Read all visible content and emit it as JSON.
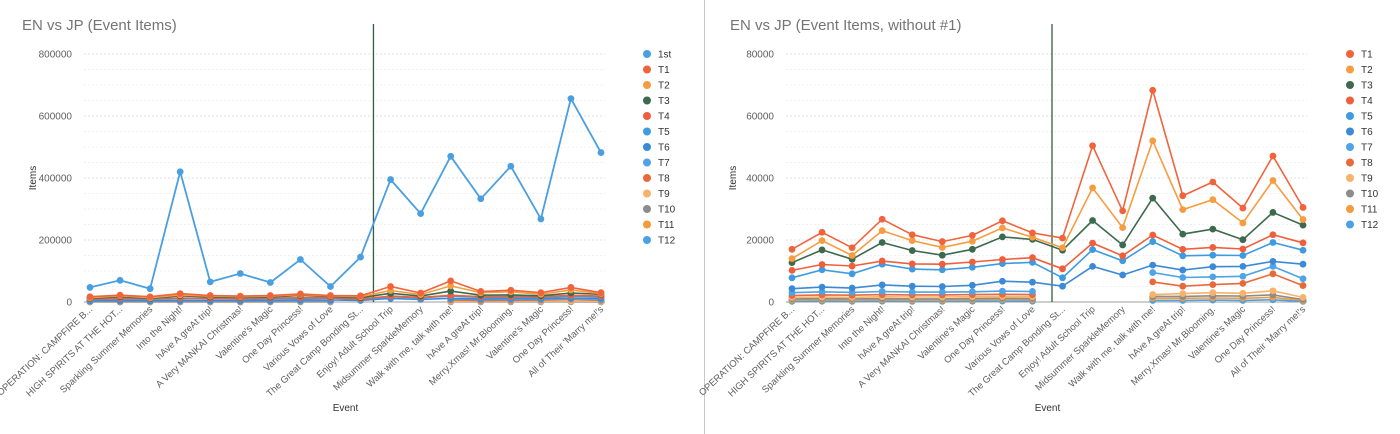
{
  "colors": {
    "1st": "#4a9fe0",
    "T1": "#f0643c",
    "T2": "#f59d40",
    "T3": "#3d6a4f",
    "T4": "#ef5f3b",
    "T5": "#3f9be0",
    "T6": "#3c8ad6",
    "T7": "#4fa3e6",
    "T8": "#e86a3c",
    "T9": "#f7b36b",
    "T10": "#8c8c8c",
    "T11": "#f39a3c",
    "T12": "#4aa2e4",
    "T12gray": "#b9b9b9",
    "marker_line": "#2f5f3e",
    "grid": "#e2e2e2",
    "axis_text": "#5f5f5f"
  },
  "chart_data": [
    {
      "type": "line",
      "title": "EN vs JP (Event Items)",
      "xlabel": "Event",
      "ylabel": "Items",
      "ylim": [
        0,
        800000
      ],
      "yticks": [
        "0",
        "200000",
        "400000",
        "600000",
        "800000"
      ],
      "grid": true,
      "legend_position": "right",
      "categories": [
        "OPERATION: CAMPFIRE B...",
        "HIGH SPIRITS AT THE HOT...",
        "Sparkling Summer Memories",
        "Into the Night!",
        "hAve A greAt trip!",
        "A Very MANKAI Christmas!",
        "Valentine's Magic",
        "One Day Princess!",
        "Various Vows of Love",
        "The Great Camp Bonding St...",
        "Enjoy! Adult School Trip",
        "Midsummer SparkleMemory",
        "Walk with me, talk with me!",
        "hAve A greAt trip!",
        "Merry.Xmas! Mr.Blooming.",
        "Valentine's Magic",
        "One Day Princess!",
        "All of Their 'Marry me!'s"
      ],
      "series": [
        {
          "name": "1st",
          "values": [
            47000,
            70000,
            43000,
            420000,
            65000,
            92000,
            63000,
            137000,
            50000,
            145000,
            395000,
            285000,
            470000,
            333000,
            438000,
            268000,
            656000,
            482000
          ]
        },
        {
          "name": "T1",
          "values": [
            17000,
            22000,
            17000,
            27000,
            21000,
            19000,
            21000,
            26000,
            21000,
            20000,
            50000,
            29000,
            68000,
            34000,
            38000,
            30000,
            47000,
            30000
          ]
        },
        {
          "name": "T2",
          "values": [
            14000,
            20000,
            14000,
            23000,
            19000,
            17000,
            19000,
            24000,
            20000,
            17000,
            37000,
            24000,
            52000,
            30000,
            33000,
            25000,
            39000,
            27000
          ]
        },
        {
          "name": "T3",
          "values": [
            12000,
            17000,
            12000,
            20000,
            16000,
            15000,
            16000,
            21000,
            18000,
            14000,
            28000,
            19000,
            35000,
            22000,
            23000,
            20000,
            29000,
            25000
          ]
        },
        {
          "name": "T4",
          "values": [
            10000,
            12000,
            11000,
            13000,
            12000,
            12000,
            13000,
            13500,
            14000,
            10000,
            19000,
            15000,
            21500,
            17000,
            17500,
            17000,
            21500,
            19000
          ]
        },
        {
          "name": "T5",
          "values": [
            8000,
            10000,
            9000,
            12000,
            11000,
            10500,
            11000,
            12000,
            12500,
            8000,
            17000,
            13500,
            19500,
            15000,
            15000,
            15000,
            19000,
            17000
          ]
        },
        {
          "name": "T6",
          "values": [
            4500,
            5000,
            4500,
            5500,
            5000,
            5000,
            5500,
            7000,
            6500,
            5000,
            11500,
            8500,
            12000,
            10000,
            11000,
            11000,
            13000,
            12000
          ]
        },
        {
          "name": "T7",
          "values": [
            3000,
            3200,
            3100,
            3300,
            3200,
            3200,
            3300,
            3500,
            3400,
            null,
            null,
            null,
            9500,
            8000,
            8000,
            8000,
            11500,
            7500
          ]
        },
        {
          "name": "T8",
          "values": [
            2200,
            2300,
            2200,
            2400,
            2300,
            2300,
            2400,
            2500,
            2400,
            null,
            null,
            null,
            6500,
            5000,
            5500,
            6000,
            9000,
            5500
          ]
        },
        {
          "name": "T9",
          "values": [
            1500,
            1600,
            1500,
            1700,
            1600,
            1600,
            1700,
            1800,
            1700,
            null,
            null,
            null,
            2500,
            2800,
            3000,
            2800,
            3500,
            1500
          ]
        },
        {
          "name": "T10",
          "values": [
            1000,
            1100,
            1000,
            1100,
            1000,
            1000,
            1100,
            1200,
            1100,
            null,
            null,
            null,
            1800,
            1800,
            2000,
            1900,
            2200,
            800
          ]
        },
        {
          "name": "T11",
          "values": [
            600,
            700,
            600,
            700,
            600,
            600,
            700,
            800,
            700,
            null,
            null,
            null,
            1200,
            1200,
            1300,
            1200,
            1500,
            500
          ]
        },
        {
          "name": "T12",
          "values": [
            200,
            250,
            200,
            250,
            200,
            200,
            250,
            300,
            250,
            null,
            null,
            null,
            500,
            500,
            600,
            500,
            700,
            200
          ]
        }
      ]
    },
    {
      "type": "line",
      "title": "EN vs JP (Event Items, without #1)",
      "xlabel": "Event",
      "ylabel": "Items",
      "ylim": [
        0,
        80000
      ],
      "yticks": [
        "0",
        "20000",
        "40000",
        "60000",
        "80000"
      ],
      "grid": true,
      "legend_position": "right",
      "categories": [
        "OPERATION: CAMPFIRE B...",
        "HIGH SPIRITS AT THE HOT...",
        "Sparkling Summer Memories",
        "Into the Night!",
        "hAve A greAt trip!",
        "A Very MANKAI Christmas!",
        "Valentine's Magic",
        "One Day Princess!",
        "Various Vows of Love",
        "The Great Camp Bonding St...",
        "Enjoy! Adult School Trip",
        "Midsummer SparkleMemory",
        "Walk with me, talk with me!",
        "hAve A greAt trip!",
        "Merry.Xmas! Mr.Blooming.",
        "Valentine's Magic",
        "One Day Princess!",
        "All of Their 'Marry me!'s"
      ],
      "series": [
        {
          "name": "T1",
          "values": [
            17000,
            22500,
            17500,
            26700,
            21700,
            19500,
            21500,
            26200,
            22300,
            20600,
            50400,
            29400,
            68300,
            34300,
            38700,
            30300,
            47100,
            30500
          ]
        },
        {
          "name": "T2",
          "values": [
            14000,
            19800,
            15000,
            23000,
            19800,
            17600,
            19600,
            23900,
            20900,
            17500,
            36800,
            24000,
            52000,
            29800,
            33000,
            25500,
            39200,
            26600
          ]
        },
        {
          "name": "T3",
          "values": [
            12700,
            16800,
            13800,
            19200,
            16600,
            15100,
            17000,
            21000,
            20200,
            16700,
            26300,
            18400,
            33500,
            21900,
            23500,
            20100,
            28900,
            24800
          ]
        },
        {
          "name": "T4",
          "values": [
            10200,
            12100,
            11600,
            13200,
            12300,
            12200,
            12900,
            13700,
            14300,
            10700,
            19000,
            14900,
            21600,
            17000,
            17600,
            17100,
            21700,
            19100
          ]
        },
        {
          "name": "T5",
          "values": [
            7800,
            10400,
            9100,
            12200,
            10600,
            10400,
            11200,
            12400,
            12800,
            7800,
            16900,
            13300,
            19500,
            14900,
            15100,
            15000,
            19200,
            16700
          ]
        },
        {
          "name": "T6",
          "values": [
            4300,
            4800,
            4500,
            5500,
            5100,
            5000,
            5400,
            6700,
            6400,
            5100,
            11500,
            8700,
            11900,
            10300,
            11400,
            11500,
            13100,
            12200
          ]
        },
        {
          "name": "T7",
          "values": [
            3000,
            3300,
            3100,
            3400,
            3200,
            3200,
            3300,
            3500,
            3400,
            null,
            null,
            null,
            9500,
            7900,
            8100,
            8300,
            11500,
            7500
          ]
        },
        {
          "name": "T8",
          "values": [
            2100,
            2300,
            2200,
            2400,
            2300,
            2300,
            2400,
            2500,
            2400,
            null,
            null,
            null,
            6500,
            5100,
            5600,
            6000,
            9100,
            5300
          ]
        },
        {
          "name": "T9",
          "values": [
            1500,
            1600,
            1500,
            1700,
            1600,
            1600,
            1700,
            1800,
            1700,
            null,
            null,
            null,
            2400,
            2700,
            3000,
            2800,
            3600,
            1500
          ]
        },
        {
          "name": "T10",
          "values": [
            1000,
            1100,
            1000,
            1100,
            1000,
            1000,
            1100,
            1200,
            1100,
            null,
            null,
            null,
            1800,
            1800,
            2000,
            1900,
            2300,
            800
          ]
        },
        {
          "name": "T11",
          "values": [
            600,
            700,
            600,
            700,
            600,
            600,
            700,
            800,
            700,
            null,
            null,
            null,
            1200,
            1200,
            1300,
            1200,
            1500,
            500
          ]
        },
        {
          "name": "T12",
          "values": [
            200,
            250,
            200,
            250,
            200,
            200,
            250,
            300,
            250,
            null,
            null,
            null,
            500,
            500,
            600,
            500,
            700,
            200
          ]
        }
      ]
    }
  ]
}
